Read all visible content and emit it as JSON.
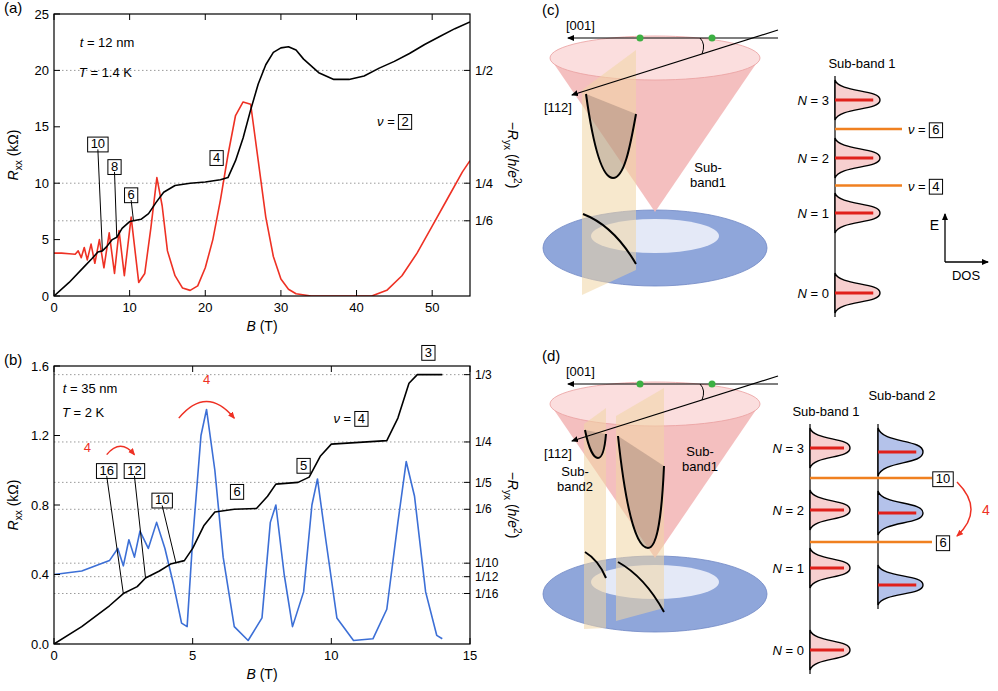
{
  "chart_data": [
    {
      "panel": "(a)",
      "type": "line",
      "xlabel": [
        {
          "text": "B",
          "style": "italic"
        },
        {
          "text": " (T)"
        }
      ],
      "ylabel": [
        {
          "text": "R",
          "style": "italic"
        },
        {
          "text": "xx",
          "style": "sub"
        },
        {
          "text": " (kΩ)"
        }
      ],
      "y2label": [
        {
          "text": "−"
        },
        {
          "text": "R",
          "style": "italic"
        },
        {
          "text": "yx",
          "style": "sub"
        },
        {
          "text": " ("
        },
        {
          "text": "h/e",
          "style": "italic"
        },
        {
          "text": "2",
          "style": "sup"
        },
        {
          "text": ")"
        }
      ],
      "xlim": [
        0,
        55
      ],
      "xticks": [
        0,
        10,
        20,
        30,
        40,
        50
      ],
      "ylim": [
        0,
        25
      ],
      "yticks": [
        0,
        5,
        10,
        15,
        20,
        25
      ],
      "y2lim": [
        0,
        0.625
      ],
      "y2ticks": [
        {
          "value": 0.5,
          "label": "1/2"
        },
        {
          "value": 0.25,
          "label": "1/4"
        },
        {
          "value": 0.1667,
          "label": "1/6"
        }
      ],
      "grid": "y2",
      "series": [
        {
          "color": "#ee3124",
          "x": [
            0,
            1,
            2,
            2.8,
            3.2,
            3.6,
            4.0,
            4.4,
            4.9,
            5.4,
            6.0,
            6.6,
            7.3,
            8.0,
            8.6,
            9.3,
            10.2,
            11.2,
            12.0,
            12.8,
            13.6,
            14.3,
            15.0,
            16.0,
            17.0,
            18.0,
            19.0,
            20.0,
            21.0,
            22.0,
            23.0,
            24.0,
            25.0,
            26.0,
            27.0,
            28.0,
            29.0,
            30.0,
            31.0,
            32.0,
            34.0,
            38.0,
            42.0,
            44.0,
            46.0,
            48.0,
            50.0,
            52.0,
            54.0,
            55.0
          ],
          "values": [
            3.8,
            3.8,
            3.75,
            3.7,
            4.0,
            3.4,
            4.3,
            3.2,
            4.6,
            2.9,
            5.0,
            2.5,
            5.6,
            2.0,
            5.8,
            1.8,
            7.0,
            1.2,
            2.0,
            6.0,
            10.5,
            8.0,
            4.0,
            1.8,
            0.7,
            0.5,
            0.9,
            2.5,
            5.0,
            8.5,
            12.5,
            16.0,
            17.2,
            17.0,
            12.0,
            7.0,
            3.5,
            1.5,
            0.6,
            0.2,
            0.0,
            0.0,
            0.0,
            0.5,
            1.8,
            3.8,
            6.2,
            8.6,
            11.0,
            12.0
          ]
        },
        {
          "color": "#000000",
          "axis": "y2",
          "x": [
            0,
            2,
            4,
            5,
            5.8,
            6.4,
            7.0,
            7.7,
            8.3,
            9.0,
            10.0,
            11.5,
            12.5,
            13.5,
            14.5,
            16,
            18,
            20,
            22,
            23,
            24,
            25,
            26,
            27,
            28,
            29,
            30,
            31,
            32,
            33,
            35,
            37,
            39,
            41,
            43,
            45,
            47,
            49,
            51,
            53,
            55
          ],
          "values": [
            0,
            0.03,
            0.065,
            0.0825,
            0.0975,
            0.1,
            0.11,
            0.125,
            0.13,
            0.15,
            0.165,
            0.17,
            0.1825,
            0.2075,
            0.23,
            0.245,
            0.25,
            0.2525,
            0.2575,
            0.2625,
            0.3,
            0.35,
            0.4125,
            0.47,
            0.5125,
            0.54,
            0.55,
            0.5525,
            0.545,
            0.525,
            0.495,
            0.48,
            0.48,
            0.4875,
            0.505,
            0.52,
            0.5375,
            0.5575,
            0.575,
            0.5925,
            0.6075
          ]
        }
      ],
      "annotations": [
        {
          "runs": [
            {
              "text": "t",
              "style": "italic"
            },
            {
              "text": " = 12 nm"
            }
          ],
          "x": 7.0,
          "y": 22.5
        },
        {
          "runs": [
            {
              "text": "T",
              "style": "italic"
            },
            {
              "text": " = 1.4 K"
            }
          ],
          "x": 6.8,
          "y": 19.8
        },
        {
          "runs": [
            {
              "text": "10",
              "style": "box"
            }
          ],
          "x": 5.8,
          "y": 13.5,
          "to": [
            6.4,
            4.0
          ]
        },
        {
          "runs": [
            {
              "text": "8",
              "style": "box"
            }
          ],
          "x": 8.0,
          "y": 11.5,
          "to": [
            8.3,
            5.2
          ]
        },
        {
          "runs": [
            {
              "text": "6",
              "style": "box"
            }
          ],
          "x": 10.2,
          "y": 9.0,
          "to": [
            10.5,
            6.7
          ]
        },
        {
          "runs": [
            {
              "text": "4",
              "style": "box"
            }
          ],
          "x": 21.5,
          "y": 12.3
        },
        {
          "runs": [
            {
              "text": "ν",
              "style": "italic"
            },
            {
              "text": " = "
            },
            {
              "text": "2",
              "style": "box"
            }
          ],
          "x": 45,
          "y": 15.5
        }
      ]
    },
    {
      "panel": "(b)",
      "type": "line",
      "xlabel": [
        {
          "text": "B",
          "style": "italic"
        },
        {
          "text": " (T)"
        }
      ],
      "ylabel": [
        {
          "text": "R",
          "style": "italic"
        },
        {
          "text": "xx",
          "style": "sub"
        },
        {
          "text": " (kΩ)"
        }
      ],
      "y2label": [
        {
          "text": "−"
        },
        {
          "text": "R",
          "style": "italic"
        },
        {
          "text": "yx",
          "style": "sub"
        },
        {
          "text": " ("
        },
        {
          "text": "h/e",
          "style": "italic"
        },
        {
          "text": "2",
          "style": "sup"
        },
        {
          "text": ")"
        }
      ],
      "xlim": [
        0,
        15
      ],
      "xticks": [
        0,
        5,
        10,
        15
      ],
      "ylim": [
        0,
        1.6
      ],
      "yticks": [
        {
          "value": 0,
          "label": "0.0"
        },
        0.4,
        0.8,
        1.2,
        1.6
      ],
      "y2lim": [
        0,
        0.344
      ],
      "y2ticks": [
        {
          "value": 0.3333,
          "label": "1/3"
        },
        {
          "value": 0.25,
          "label": "1/4"
        },
        {
          "value": 0.2,
          "label": "1/5"
        },
        {
          "value": 0.1667,
          "label": "1/6"
        },
        {
          "value": 0.1,
          "label": "1/10"
        },
        {
          "value": 0.0833,
          "label": "1/12"
        },
        {
          "value": 0.0625,
          "label": "1/16"
        }
      ],
      "grid": "y2",
      "series": [
        {
          "color": "#3c6fd6",
          "x": [
            0,
            1,
            1.5,
            2,
            2.3,
            2.5,
            2.7,
            2.9,
            3.1,
            3.4,
            3.7,
            4.0,
            4.3,
            4.6,
            4.8,
            5.0,
            5.3,
            5.5,
            5.8,
            6.1,
            6.5,
            7.0,
            7.5,
            7.8,
            8.0,
            8.3,
            8.6,
            9.0,
            9.3,
            9.5,
            9.8,
            10.2,
            10.8,
            11.5,
            12.0,
            12.4,
            12.7,
            13.0,
            13.4,
            13.8,
            14.0
          ],
          "values": [
            0.4,
            0.42,
            0.45,
            0.48,
            0.55,
            0.45,
            0.6,
            0.5,
            0.65,
            0.55,
            0.7,
            0.55,
            0.35,
            0.12,
            0.1,
            0.6,
            1.2,
            1.35,
            1.0,
            0.5,
            0.1,
            0.02,
            0.15,
            0.7,
            0.8,
            0.4,
            0.1,
            0.3,
            0.8,
            0.95,
            0.6,
            0.15,
            0.02,
            0.03,
            0.2,
            0.7,
            1.05,
            0.85,
            0.3,
            0.05,
            0.03
          ]
        },
        {
          "color": "#000000",
          "axis": "y2",
          "x": [
            0,
            1,
            2,
            2.5,
            3,
            3.3,
            3.8,
            4.2,
            4.7,
            5.0,
            5.4,
            5.8,
            6.5,
            7.3,
            7.7,
            8.0,
            8.8,
            9.2,
            9.6,
            10.0,
            11.0,
            12.0,
            12.4,
            12.8,
            13.1,
            14.0
          ],
          "values": [
            0,
            0.0215,
            0.0473,
            0.0624,
            0.071,
            0.0817,
            0.0903,
            0.0989,
            0.1032,
            0.1183,
            0.1462,
            0.1634,
            0.1667,
            0.1677,
            0.1828,
            0.1978,
            0.2,
            0.2065,
            0.2323,
            0.2473,
            0.2495,
            0.2516,
            0.2796,
            0.3226,
            0.3333,
            0.3333
          ]
        }
      ],
      "annotations": [
        {
          "runs": [
            {
              "text": "t",
              "style": "italic"
            },
            {
              "text": " = 35 nm"
            }
          ],
          "x": 1.3,
          "y": 1.47
        },
        {
          "runs": [
            {
              "text": "T",
              "style": "italic"
            },
            {
              "text": " = 2 K"
            }
          ],
          "x": 1.05,
          "y": 1.33
        },
        {
          "runs": [
            {
              "text": "4"
            }
          ],
          "x": 1.2,
          "y": 1.13,
          "color": "#ee3124",
          "arrow_from": [
            1.9,
            1.09
          ],
          "arrow_to": [
            2.9,
            1.09
          ]
        },
        {
          "runs": [
            {
              "text": "16",
              "style": "box"
            }
          ],
          "x": 1.9,
          "y": 1.0,
          "to": [
            2.5,
            0.29
          ]
        },
        {
          "runs": [
            {
              "text": "12",
              "style": "box"
            }
          ],
          "x": 2.9,
          "y": 1.0,
          "to": [
            3.3,
            0.38
          ]
        },
        {
          "runs": [
            {
              "text": "10",
              "style": "box"
            }
          ],
          "x": 3.9,
          "y": 0.83,
          "to": [
            4.4,
            0.465
          ]
        },
        {
          "runs": [
            {
              "text": "4"
            }
          ],
          "x": 5.5,
          "y": 1.52,
          "color": "#ee3124",
          "arrow_from": [
            4.5,
            1.3
          ],
          "arrow_to": [
            6.5,
            1.3
          ]
        },
        {
          "runs": [
            {
              "text": "6",
              "style": "box"
            }
          ],
          "x": 6.6,
          "y": 0.88
        },
        {
          "runs": [
            {
              "text": "5",
              "style": "box"
            }
          ],
          "x": 9.0,
          "y": 1.03
        },
        {
          "runs": [
            {
              "text": "ν",
              "style": "italic"
            },
            {
              "text": " = "
            },
            {
              "text": "4",
              "style": "box"
            }
          ],
          "x": 10.7,
          "y": 1.3
        },
        {
          "runs": [
            {
              "text": "3",
              "style": "box"
            }
          ],
          "x": 13.5,
          "y": 1.68
        }
      ]
    }
  ],
  "diagrams": [
    {
      "panel": "(c)",
      "directions": [
        "[001]",
        "[112]"
      ],
      "band_labels": [
        "Sub-band1"
      ],
      "dos_headers": [
        "Sub-band 1"
      ],
      "levels": [
        [
          {
            "text": "N",
            "style": "italic"
          },
          {
            "text": " = 3"
          }
        ],
        [
          {
            "text": "N",
            "style": "italic"
          },
          {
            "text": " = 2"
          }
        ],
        [
          {
            "text": "N",
            "style": "italic"
          },
          {
            "text": " = 1"
          }
        ],
        [
          {
            "text": "N",
            "style": "italic"
          },
          {
            "text": " = 0"
          }
        ]
      ],
      "gaps": [
        [
          {
            "text": "ν",
            "style": "italic"
          },
          {
            "text": " = "
          },
          {
            "text": "6",
            "style": "box"
          }
        ],
        [
          {
            "text": "ν",
            "style": "italic"
          },
          {
            "text": " = "
          },
          {
            "text": "4",
            "style": "box"
          }
        ]
      ],
      "axes": [
        "E",
        "DOS"
      ]
    },
    {
      "panel": "(d)",
      "directions": [
        "[001]",
        "[112]"
      ],
      "band_labels": [
        "Sub-band2",
        "Sub-band1"
      ],
      "dos_headers": [
        "Sub-band 1",
        "Sub-band 2"
      ],
      "levels": [
        [
          {
            "text": "N",
            "style": "italic"
          },
          {
            "text": " = 3"
          }
        ],
        [
          {
            "text": "N",
            "style": "italic"
          },
          {
            "text": " = 2"
          }
        ],
        [
          {
            "text": "N",
            "style": "italic"
          },
          {
            "text": " = 1"
          }
        ],
        [
          {
            "text": "N",
            "style": "italic"
          },
          {
            "text": " = 0"
          }
        ]
      ],
      "gaps": [
        [
          {
            "text": "10",
            "style": "box"
          }
        ],
        [
          {
            "text": "6",
            "style": "box"
          }
        ]
      ],
      "step": "4"
    }
  ]
}
